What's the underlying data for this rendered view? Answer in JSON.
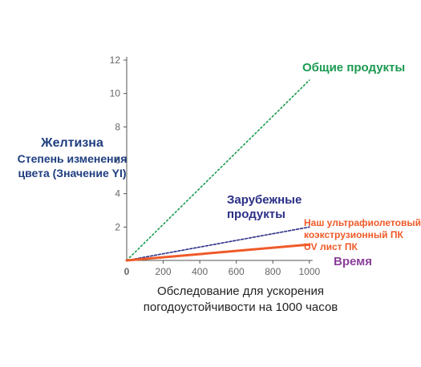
{
  "chart_data": {
    "type": "line",
    "ylabel": {
      "title": "Желтизна",
      "line1": "Степень изменения",
      "line2": "цвета (Значение YI)"
    },
    "xlabel": {
      "title": "Время",
      "caption_line1": "Обследование для ускорения",
      "caption_line2": "погодоустойчивости на 1000 часов"
    },
    "x_ticks": [
      "0",
      "200",
      "400",
      "600",
      "800",
      "1000"
    ],
    "y_ticks": [
      "2",
      "4",
      "6",
      "8",
      "10",
      "12"
    ],
    "xlim": [
      0,
      1150
    ],
    "ylim": [
      0,
      12
    ],
    "series": [
      {
        "name": "Общие продукты",
        "x": [
          0,
          1000
        ],
        "y": [
          0,
          10.8
        ],
        "color": "#1a9a50",
        "style": "dotted"
      },
      {
        "name_line1": "Зарубежные",
        "name_line2": "продукты",
        "x": [
          0,
          1000
        ],
        "y": [
          0,
          2.0
        ],
        "color": "#2b2f86",
        "style": "dashed"
      },
      {
        "name_line1": "Наш ультрафиолетовый",
        "name_line2": "коэкструзионный ПК",
        "name_line3": "UV лист ПК",
        "x": [
          0,
          1000
        ],
        "y": [
          0,
          0.95
        ],
        "color": "#ef5a28",
        "style": "solid"
      }
    ],
    "colors": {
      "ylabel": "#1f3e80",
      "time_label": "#8a3f9a",
      "axis": "#555555",
      "tick_text": "#666666"
    }
  }
}
